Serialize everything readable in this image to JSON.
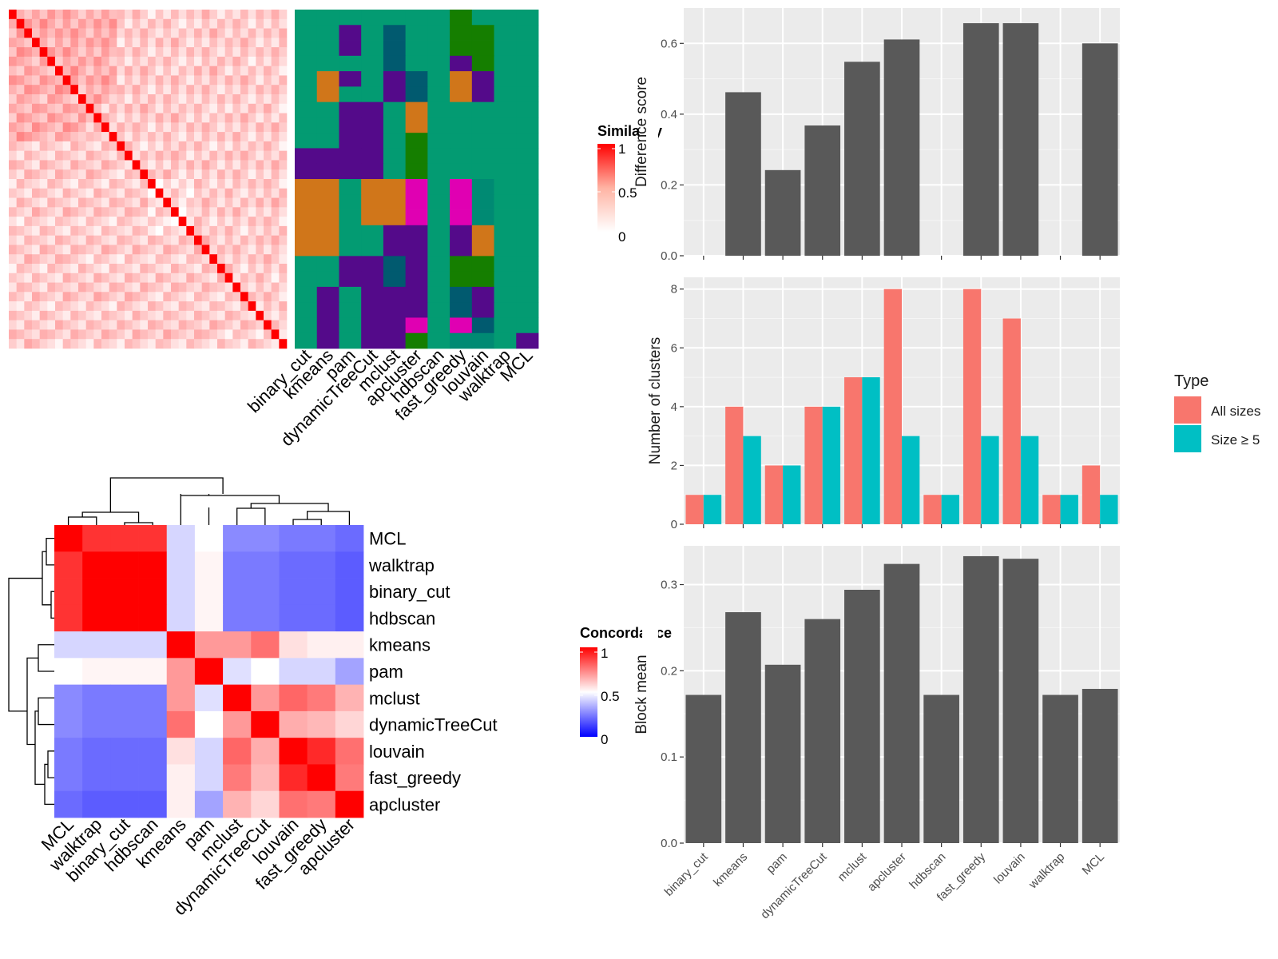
{
  "colors": {
    "panel_bg": "#EBEBEB",
    "grid": "#FFFFFF",
    "bar_dark": "#595959",
    "all_sizes": "#F8766D",
    "size_ge5": "#00BFC4"
  },
  "chart_data": [
    {
      "id": "similarity",
      "type": "heatmap",
      "legend_title": "Similarity",
      "legend_ticks": [
        "1",
        "0.5",
        "0"
      ],
      "n": 36,
      "colors": [
        "#FFFFFF",
        "#FF0000"
      ],
      "values": []
    },
    {
      "id": "assignments",
      "type": "heatmap",
      "columns": [
        "binary_cut",
        "kmeans",
        "pam",
        "dynamicTreeCut",
        "mclust",
        "apcluster",
        "hdbscan",
        "fast_greedy",
        "louvain",
        "walktrap",
        "MCL"
      ],
      "palette": [
        "#009E73",
        "#55008C",
        "#D55E00",
        "#006473",
        "#009E73",
        "#E005B8",
        "#128000"
      ],
      "palette_hex": [
        "#039b72",
        "#540a8a",
        "#d0761a",
        "#015a6f",
        "#e000b2",
        "#157e00",
        "#008a73"
      ],
      "rows": [
        [
          0,
          0,
          0,
          0,
          0,
          0,
          0,
          5,
          0,
          0,
          0
        ],
        [
          0,
          0,
          1,
          0,
          3,
          0,
          0,
          5,
          5,
          0,
          0
        ],
        [
          0,
          0,
          1,
          0,
          3,
          0,
          0,
          5,
          5,
          0,
          0
        ],
        [
          0,
          0,
          0,
          0,
          3,
          0,
          0,
          1,
          5,
          0,
          0
        ],
        [
          0,
          2,
          1,
          0,
          1,
          3,
          0,
          2,
          1,
          0,
          0
        ],
        [
          0,
          2,
          0,
          0,
          1,
          3,
          0,
          2,
          1,
          0,
          0
        ],
        [
          0,
          0,
          1,
          1,
          0,
          2,
          0,
          0,
          0,
          0,
          0
        ],
        [
          0,
          0,
          1,
          1,
          0,
          2,
          0,
          0,
          0,
          0,
          0
        ],
        [
          0,
          0,
          1,
          1,
          0,
          5,
          0,
          0,
          0,
          0,
          0
        ],
        [
          1,
          1,
          1,
          1,
          0,
          5,
          0,
          0,
          0,
          0,
          0
        ],
        [
          1,
          1,
          1,
          1,
          0,
          5,
          0,
          0,
          0,
          0,
          0
        ],
        [
          2,
          2,
          0,
          2,
          2,
          4,
          0,
          4,
          6,
          0,
          0
        ],
        [
          2,
          2,
          0,
          2,
          2,
          4,
          0,
          4,
          6,
          0,
          0
        ],
        [
          2,
          2,
          0,
          2,
          2,
          4,
          0,
          4,
          6,
          0,
          0
        ],
        [
          2,
          2,
          0,
          0,
          1,
          1,
          0,
          1,
          2,
          0,
          0
        ],
        [
          2,
          2,
          0,
          0,
          1,
          1,
          0,
          1,
          2,
          0,
          0
        ],
        [
          0,
          0,
          1,
          1,
          3,
          1,
          0,
          5,
          5,
          0,
          0
        ],
        [
          0,
          0,
          1,
          1,
          3,
          1,
          0,
          5,
          5,
          0,
          0
        ],
        [
          0,
          1,
          0,
          1,
          1,
          1,
          0,
          3,
          1,
          0,
          0
        ],
        [
          0,
          1,
          0,
          1,
          1,
          1,
          0,
          3,
          1,
          0,
          0
        ],
        [
          0,
          1,
          0,
          1,
          1,
          4,
          0,
          4,
          3,
          0,
          0
        ],
        [
          0,
          1,
          0,
          1,
          1,
          5,
          0,
          6,
          6,
          0,
          1
        ]
      ]
    },
    {
      "id": "concordance",
      "type": "heatmap",
      "legend_title": "Concordance",
      "legend_ticks": [
        "1",
        "0.5",
        "0"
      ],
      "labels": [
        "MCL",
        "walktrap",
        "binary_cut",
        "hdbscan",
        "kmeans",
        "pam",
        "mclust",
        "dynamicTreeCut",
        "louvain",
        "fast_greedy",
        "apcluster"
      ],
      "values": [
        [
          1.0,
          0.9,
          0.9,
          0.9,
          0.42,
          0.5,
          0.27,
          0.27,
          0.24,
          0.24,
          0.21
        ],
        [
          0.9,
          1.0,
          1.0,
          1.0,
          0.42,
          0.52,
          0.24,
          0.24,
          0.21,
          0.21,
          0.18
        ],
        [
          0.9,
          1.0,
          1.0,
          1.0,
          0.42,
          0.52,
          0.24,
          0.24,
          0.21,
          0.21,
          0.18
        ],
        [
          0.9,
          1.0,
          1.0,
          1.0,
          0.42,
          0.52,
          0.24,
          0.24,
          0.21,
          0.21,
          0.18
        ],
        [
          0.42,
          0.42,
          0.42,
          0.42,
          1.0,
          0.7,
          0.7,
          0.78,
          0.56,
          0.53,
          0.53
        ],
        [
          0.5,
          0.52,
          0.52,
          0.52,
          0.7,
          1.0,
          0.44,
          0.5,
          0.42,
          0.42,
          0.32
        ],
        [
          0.27,
          0.24,
          0.24,
          0.24,
          0.7,
          0.44,
          1.0,
          0.7,
          0.8,
          0.76,
          0.65
        ],
        [
          0.27,
          0.24,
          0.24,
          0.24,
          0.78,
          0.5,
          0.7,
          1.0,
          0.66,
          0.64,
          0.58
        ],
        [
          0.24,
          0.21,
          0.21,
          0.21,
          0.56,
          0.42,
          0.8,
          0.66,
          1.0,
          0.92,
          0.78
        ],
        [
          0.24,
          0.21,
          0.21,
          0.21,
          0.53,
          0.42,
          0.76,
          0.64,
          0.92,
          1.0,
          0.76
        ],
        [
          0.21,
          0.18,
          0.18,
          0.18,
          0.53,
          0.32,
          0.65,
          0.58,
          0.78,
          0.76,
          1.0
        ]
      ]
    },
    {
      "id": "difference",
      "type": "bar",
      "categories": [
        "binary_cut",
        "kmeans",
        "pam",
        "dynamicTreeCut",
        "mclust",
        "apcluster",
        "hdbscan",
        "fast_greedy",
        "louvain",
        "walktrap",
        "MCL"
      ],
      "values": [
        0,
        0.462,
        0.242,
        0.368,
        0.548,
        0.611,
        0,
        0.657,
        0.657,
        0,
        0.6
      ],
      "ylabel": "Difference score",
      "ylim": [
        0,
        0.7
      ],
      "yticks": [
        "0.0",
        "0.2",
        "0.4",
        "0.6"
      ],
      "ytick_values": [
        0,
        0.2,
        0.4,
        0.6
      ],
      "grid": true
    },
    {
      "id": "nclusters",
      "type": "bar",
      "categories": [
        "binary_cut",
        "kmeans",
        "pam",
        "dynamicTreeCut",
        "mclust",
        "apcluster",
        "hdbscan",
        "fast_greedy",
        "louvain",
        "walktrap",
        "MCL"
      ],
      "series": [
        {
          "name": "All sizes",
          "values": [
            1,
            4,
            2,
            4,
            5,
            8,
            1,
            8,
            7,
            1,
            2
          ]
        },
        {
          "name": "Size ≥ 5",
          "values": [
            1,
            3,
            2,
            4,
            5,
            3,
            1,
            3,
            3,
            1,
            1
          ]
        }
      ],
      "ylabel": "Number of clusters",
      "ylim": [
        0,
        8.4
      ],
      "yticks": [
        "0",
        "2",
        "4",
        "6",
        "8"
      ],
      "ytick_values": [
        0,
        2,
        4,
        6,
        8
      ],
      "legend_title": "Type",
      "legend_position": "right",
      "grid": true
    },
    {
      "id": "blockmean",
      "type": "bar",
      "categories": [
        "binary_cut",
        "kmeans",
        "pam",
        "dynamicTreeCut",
        "mclust",
        "apcluster",
        "hdbscan",
        "fast_greedy",
        "louvain",
        "walktrap",
        "MCL"
      ],
      "values": [
        0.172,
        0.268,
        0.207,
        0.26,
        0.294,
        0.324,
        0.172,
        0.333,
        0.33,
        0.172,
        0.179
      ],
      "ylabel": "Block mean",
      "ylim": [
        0,
        0.345
      ],
      "yticks": [
        "0.0",
        "0.1",
        "0.2",
        "0.3"
      ],
      "ytick_values": [
        0,
        0.1,
        0.2,
        0.3
      ],
      "grid": true
    }
  ]
}
